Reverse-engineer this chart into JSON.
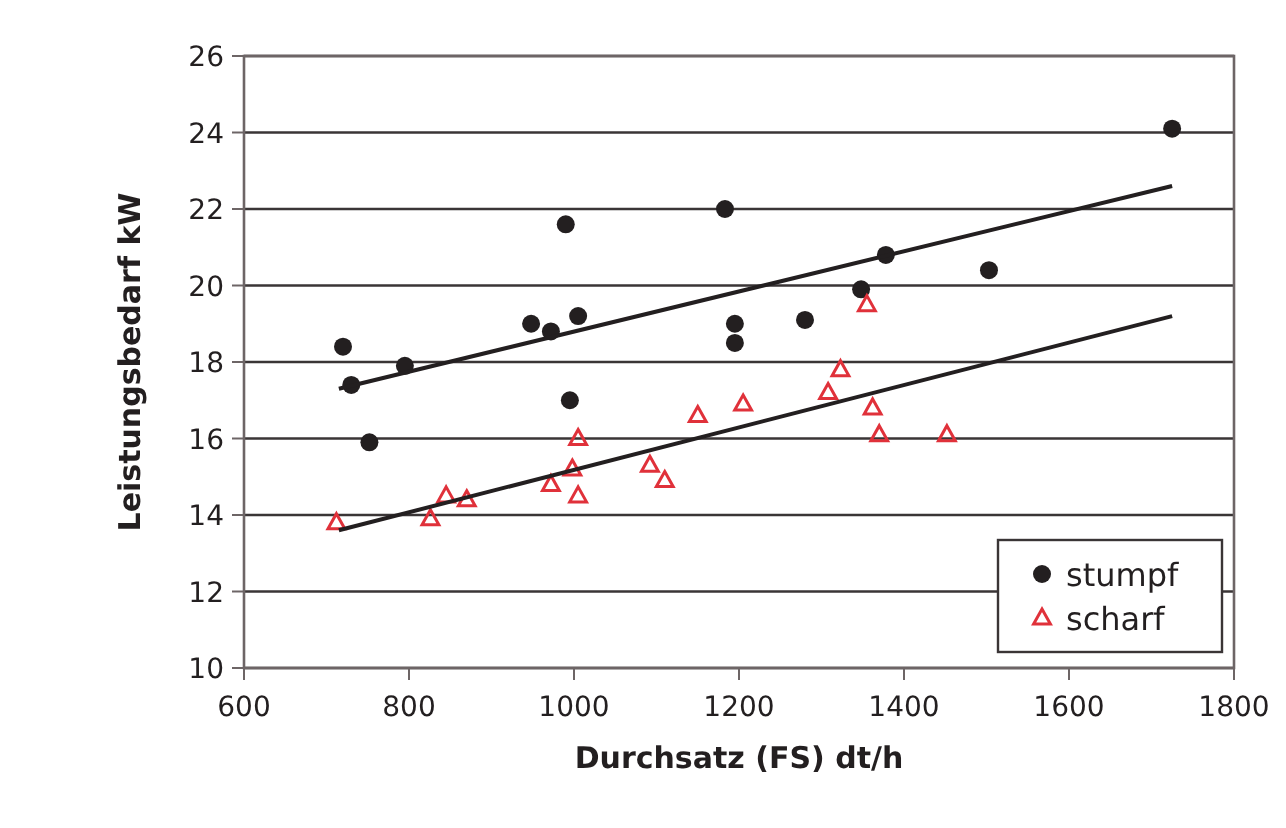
{
  "chart_data": {
    "type": "scatter",
    "xlabel": "Durchsatz (FS) dt/h",
    "ylabel": "Leistungsbedarf kW",
    "xlim": [
      600,
      1800
    ],
    "xticks": [
      600,
      800,
      1000,
      1200,
      1400,
      1600,
      1800
    ],
    "ylim": [
      10,
      26
    ],
    "yticks": [
      10,
      12,
      14,
      16,
      18,
      20,
      22,
      24,
      26
    ],
    "grid": "y",
    "legend": "bottom right",
    "series": [
      {
        "name": "stumpf",
        "color": "#231f20",
        "marker": "circle",
        "x": [
          720,
          730,
          752,
          795,
          948,
          972,
          990,
          995,
          1005,
          1183,
          1195,
          1195,
          1280,
          1348,
          1378,
          1503,
          1725
        ],
        "values": [
          18.4,
          17.4,
          15.9,
          17.9,
          19.0,
          18.8,
          21.6,
          17.0,
          19.2,
          22.0,
          19.0,
          18.5,
          19.1,
          19.9,
          20.8,
          20.4,
          24.1
        ]
      },
      {
        "name": "scharf",
        "color": "#e0313a",
        "marker": "triangle",
        "x": [
          712,
          826,
          845,
          870,
          972,
          998,
          1005,
          1005,
          1092,
          1110,
          1150,
          1205,
          1308,
          1323,
          1355,
          1362,
          1370,
          1452
        ],
        "values": [
          13.8,
          13.9,
          14.5,
          14.4,
          14.8,
          15.2,
          14.5,
          16.0,
          15.3,
          14.9,
          16.6,
          16.9,
          17.2,
          17.8,
          19.5,
          16.8,
          16.1,
          16.1
        ]
      },
      {
        "type": "line",
        "color": "#231f20",
        "marker": "none",
        "x": [
          715,
          1725
        ],
        "values": [
          17.3,
          22.6
        ]
      },
      {
        "type": "line",
        "color": "#231f20",
        "marker": "none",
        "x": [
          715,
          1725
        ],
        "values": [
          13.6,
          19.2
        ]
      }
    ]
  }
}
